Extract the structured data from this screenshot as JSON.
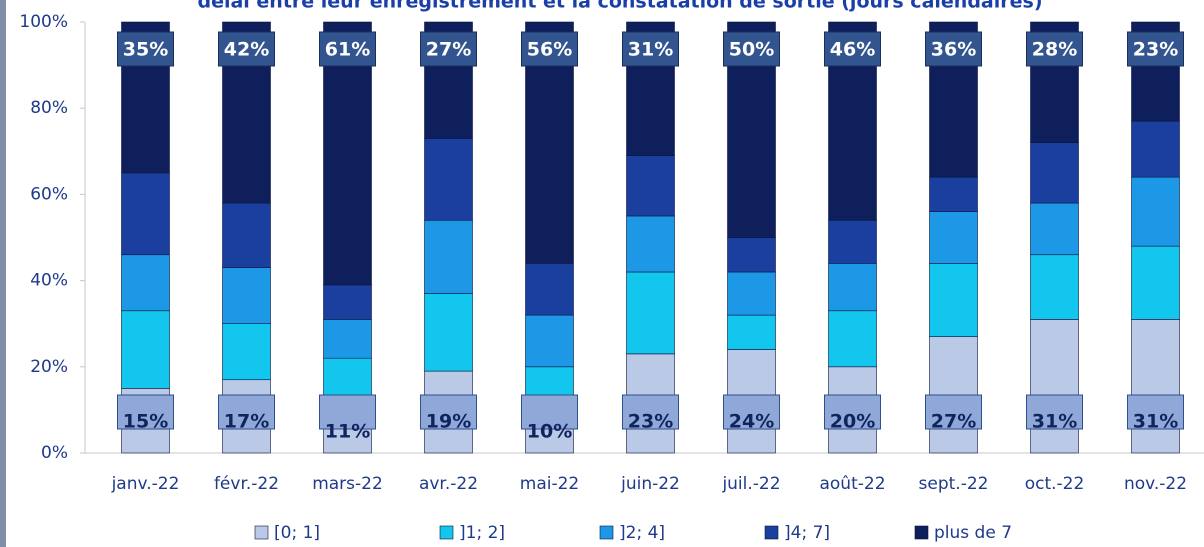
{
  "chart_data": {
    "type": "stacked_bar",
    "title": "délai entre leur enregistrement et la constatation de sortie (jours calendaires)",
    "categories": [
      "janv.-22",
      "févr.-22",
      "mars-22",
      "avr.-22",
      "mai-22",
      "juin-22",
      "juil.-22",
      "août-22",
      "sept.-22",
      "oct.-22",
      "nov.-22"
    ],
    "series": [
      {
        "name": "[0; 1]",
        "color": "#b9c9e6",
        "values": [
          15,
          17,
          11,
          19,
          10,
          23,
          24,
          20,
          27,
          31,
          31
        ],
        "value_labels": [
          "15%",
          "17%",
          "11%",
          "19%",
          "10%",
          "23%",
          "24%",
          "20%",
          "27%",
          "31%",
          "31%"
        ]
      },
      {
        "name": "]1; 2]",
        "color": "#12c6ee",
        "values": [
          18,
          13,
          11,
          18,
          10,
          19,
          8,
          13,
          17,
          15,
          17
        ]
      },
      {
        "name": "]2; 4]",
        "color": "#1d98e6",
        "values": [
          13,
          13,
          9,
          17,
          12,
          13,
          10,
          11,
          12,
          12,
          16
        ]
      },
      {
        "name": "]4; 7]",
        "color": "#1b3f9e",
        "values": [
          19,
          15,
          8,
          19,
          12,
          14,
          8,
          10,
          8,
          14,
          13
        ]
      },
      {
        "name": "plus de 7",
        "color": "#0e1f5b",
        "values": [
          35,
          42,
          61,
          27,
          56,
          31,
          50,
          46,
          36,
          28,
          23
        ],
        "value_labels": [
          "35%",
          "42%",
          "61%",
          "27%",
          "56%",
          "31%",
          "50%",
          "46%",
          "36%",
          "28%",
          "23%"
        ]
      }
    ],
    "ylim": [
      0,
      100
    ],
    "yticks": [
      {
        "value": 0,
        "label": "0%"
      },
      {
        "value": 20,
        "label": "20%"
      },
      {
        "value": 40,
        "label": "40%"
      },
      {
        "value": 60,
        "label": "60%"
      },
      {
        "value": 80,
        "label": "80%"
      },
      {
        "value": 100,
        "label": "100%"
      }
    ],
    "legend": "bottom"
  }
}
